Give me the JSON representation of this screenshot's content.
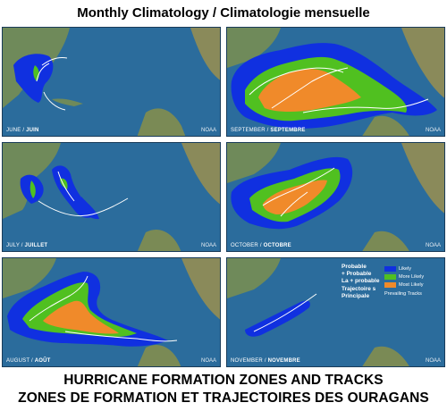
{
  "title": "Monthly Climatology / Climatologie mensuelle",
  "panels": [
    {
      "label_en": "JUNE",
      "label_fr": "JUIN",
      "credit": "NOAA"
    },
    {
      "label_en": "SEPTEMBER",
      "label_fr": "SEPTEMBRE",
      "credit": "NOAA"
    },
    {
      "label_en": "JULY",
      "label_fr": "JUILLET",
      "credit": "NOAA"
    },
    {
      "label_en": "OCTOBER",
      "label_fr": "OCTOBRE",
      "credit": "NOAA"
    },
    {
      "label_en": "AUGUST",
      "label_fr": "AOÛT",
      "credit": "NOAA"
    },
    {
      "label_en": "NOVEMBER",
      "label_fr": "NOVEMBRE",
      "credit": "NOAA"
    }
  ],
  "legend": {
    "text_lines": [
      "Probable",
      "+ Probable",
      "La + probable",
      "Trajectoire s",
      "Principale"
    ],
    "items": [
      {
        "label": "Likely",
        "color": "#1030e0"
      },
      {
        "label": "More Likely",
        "color": "#50c020"
      },
      {
        "label": "Most Likely",
        "color": "#f08a2a"
      },
      {
        "label": "Prevailing Tracks",
        "color": "#ffffff"
      }
    ]
  },
  "footer": {
    "line1": "HURRICANE FORMATION ZONES AND TRACKS",
    "line2": "ZONES DE FORMATION ET TRAJECTOIRES DES OURAGANS"
  },
  "colors": {
    "ocean": "#2b6c9c",
    "land": "#6f8a5a",
    "likely": "#1030e0",
    "more_likely": "#50c020",
    "most_likely": "#f08a2a",
    "track": "#ffffff"
  }
}
